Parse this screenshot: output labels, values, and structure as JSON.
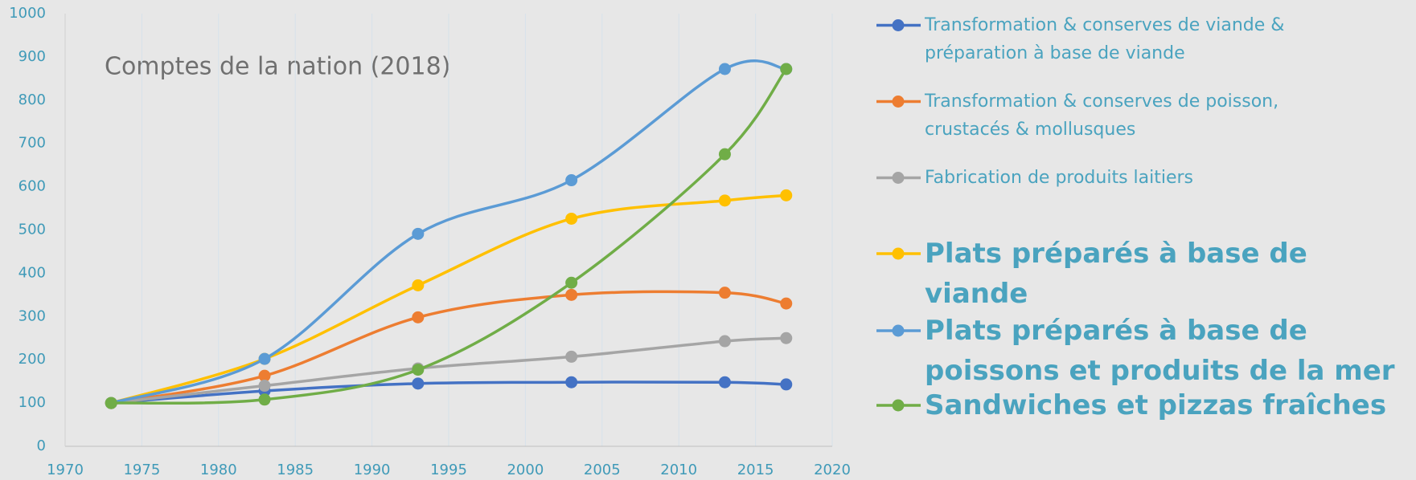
{
  "chart_data": {
    "type": "line",
    "title": "Comptes de la nation (2018)",
    "x": [
      1973,
      1983,
      1993,
      2003,
      2013,
      2017
    ],
    "series": [
      {
        "name": "Transformation & conserves de viande & préparation à base de viande",
        "color": "#4472c4",
        "values": [
          100,
          128,
          145,
          148,
          148,
          143
        ]
      },
      {
        "name": "Transformation & conserves de poisson, crustacés & mollusques",
        "color": "#ed7d31",
        "values": [
          100,
          163,
          298,
          350,
          355,
          330
        ]
      },
      {
        "name": "Fabrication de produits laitiers",
        "color": "#a5a5a5",
        "values": [
          100,
          140,
          180,
          207,
          243,
          250
        ]
      },
      {
        "name": "Plats préparés à base de viande",
        "color": "#ffc000",
        "values": [
          100,
          202,
          372,
          526,
          568,
          580
        ]
      },
      {
        "name": "Plats préparés à base de poissons et produits de la mer",
        "color": "#5b9bd5",
        "values": [
          100,
          202,
          491,
          615,
          872,
          872
        ]
      },
      {
        "name": "Sandwiches et pizzas fraîches",
        "color": "#70ad47",
        "values": [
          100,
          108,
          177,
          378,
          675,
          872
        ]
      }
    ],
    "xlim": [
      1970,
      2020
    ],
    "xticks": [
      1970,
      1975,
      1980,
      1985,
      1990,
      1995,
      2000,
      2005,
      2010,
      2015,
      2020
    ],
    "ylim": [
      0,
      1000
    ],
    "yticks": [
      0,
      100,
      200,
      300,
      400,
      500,
      600,
      700,
      800,
      900,
      1000
    ],
    "grid": true,
    "smooth": true,
    "legend": "right"
  }
}
